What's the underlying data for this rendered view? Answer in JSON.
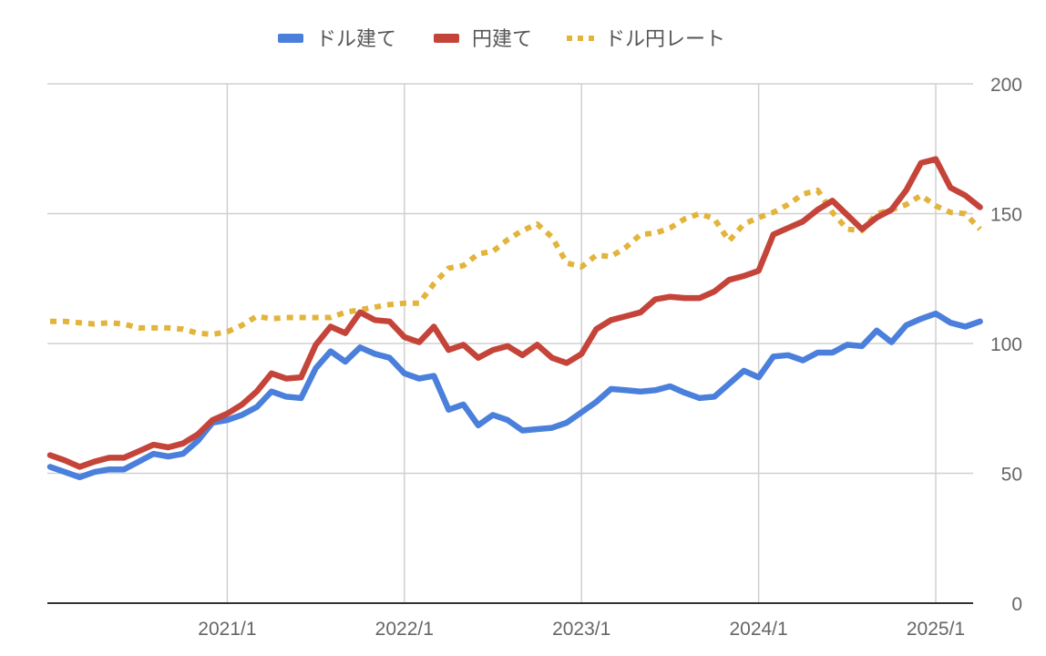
{
  "chart_data": {
    "type": "line",
    "title": "",
    "xlabel": "",
    "ylabel": "",
    "x": [
      "2020/1",
      "2020/2",
      "2020/3",
      "2020/4",
      "2020/5",
      "2020/6",
      "2020/7",
      "2020/8",
      "2020/9",
      "2020/10",
      "2020/11",
      "2020/12",
      "2021/1",
      "2021/2",
      "2021/3",
      "2021/4",
      "2021/5",
      "2021/6",
      "2021/7",
      "2021/8",
      "2021/9",
      "2021/10",
      "2021/11",
      "2021/12",
      "2022/1",
      "2022/2",
      "2022/3",
      "2022/4",
      "2022/5",
      "2022/6",
      "2022/7",
      "2022/8",
      "2022/9",
      "2022/10",
      "2022/11",
      "2022/12",
      "2023/1",
      "2023/2",
      "2023/3",
      "2023/4",
      "2023/5",
      "2023/6",
      "2023/7",
      "2023/8",
      "2023/9",
      "2023/10",
      "2023/11",
      "2023/12",
      "2024/1",
      "2024/2",
      "2024/3",
      "2024/4",
      "2024/5",
      "2024/6",
      "2024/7",
      "2024/8",
      "2024/9",
      "2024/10",
      "2024/11",
      "2024/12",
      "2025/1",
      "2025/2",
      "2025/3",
      "2025/4"
    ],
    "x_ticks": [
      "2021/1",
      "2022/1",
      "2023/1",
      "2024/1",
      "2025/1"
    ],
    "y_ticks": [
      0,
      50,
      100,
      150,
      200
    ],
    "ylim": [
      0,
      200
    ],
    "grid": true,
    "legend": "top-center",
    "y_axis_position": "right",
    "series": [
      {
        "name": "ドル建て",
        "color": "#4a7fdb",
        "style": "solid",
        "values": [
          52.5,
          50.5,
          48.5,
          50.5,
          51.5,
          51.5,
          54.5,
          57.5,
          56.5,
          57.5,
          62.5,
          69.5,
          70.5,
          72.5,
          75.5,
          81.5,
          79.5,
          79,
          90.5,
          97,
          93,
          98.5,
          96,
          94.5,
          88.5,
          86.5,
          87.5,
          74.5,
          76.5,
          68.5,
          72.5,
          70.5,
          66.5,
          67,
          67.5,
          69.5,
          73.5,
          77.5,
          82.5,
          82,
          81.5,
          82,
          83.5,
          81,
          79,
          79.5,
          84.5,
          89.5,
          87,
          95,
          95.5,
          93.5,
          96.5,
          96.5,
          99.5,
          99,
          105,
          100.5,
          107,
          109.5,
          111.5,
          108,
          106.5,
          108.5
        ]
      },
      {
        "name": "円建て",
        "color": "#c5443a",
        "style": "solid",
        "values": [
          57,
          55,
          52.5,
          54.5,
          56,
          56,
          58.5,
          61,
          60,
          61.5,
          65,
          70.5,
          73,
          76.5,
          81.5,
          88.5,
          86.5,
          87,
          99.5,
          106.5,
          104,
          112,
          109,
          108.5,
          102.5,
          100.5,
          106.5,
          97.5,
          99.5,
          94.5,
          97.5,
          99,
          95.5,
          99.5,
          94.5,
          92.5,
          96,
          105.5,
          109,
          110.5,
          112,
          117,
          118,
          117.5,
          117.5,
          120,
          124.5,
          126,
          128,
          142,
          144.5,
          147,
          151.5,
          155,
          149.5,
          144,
          148.5,
          151.5,
          159,
          169.5,
          171,
          160,
          157,
          152.5
        ]
      },
      {
        "name": "ドル円レート",
        "color": "#e3b43b",
        "style": "dotted",
        "values": [
          108.5,
          108.5,
          108,
          107.5,
          108,
          107.5,
          106,
          106,
          106,
          105.5,
          104,
          103.5,
          104.5,
          107,
          110.5,
          109.5,
          110,
          110,
          110,
          110,
          112,
          113,
          114,
          115,
          115.5,
          115.5,
          123,
          129,
          130,
          134.5,
          135.5,
          140,
          143.5,
          146,
          141,
          131,
          129.5,
          134,
          133.5,
          137,
          142,
          142.5,
          144.5,
          148,
          150,
          148,
          139.5,
          146,
          148.5,
          150.5,
          153.5,
          157.5,
          159,
          150.5,
          144,
          143.5,
          150,
          151.5,
          153.5,
          157,
          153,
          150.5,
          150,
          144
        ]
      }
    ]
  }
}
